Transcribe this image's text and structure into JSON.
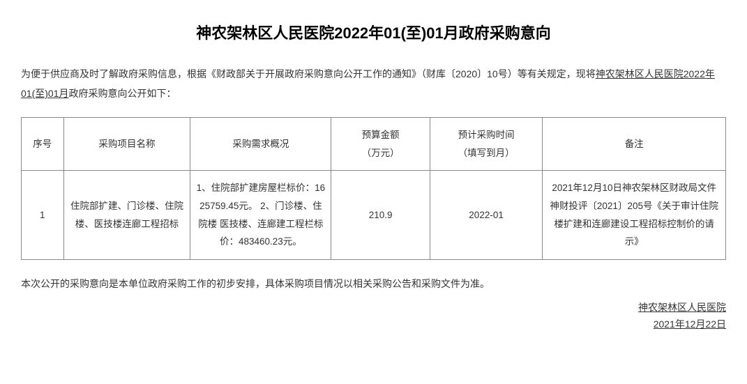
{
  "title": "神农架林区人民医院2022年01(至)01月政府采购意向",
  "intro_part1": "为便于供应商及时了解政府采购信息，根据《财政部关于开展政府采购意向公开工作的通知》（财库〔2020〕10号）等有关规定，现将",
  "intro_org_period": "神农架林区人民医院2022年01(至)01月",
  "intro_part2": "政府采购意向公开如下：",
  "table": {
    "headers": {
      "seq": "序号",
      "name": "采购项目名称",
      "req": "采购需求概况",
      "budget": "预算金额\n（万元）",
      "time": "预计采购时间\n（填写到月）",
      "note": "备注"
    },
    "rows": [
      {
        "seq": "1",
        "name": "住院部扩建、门诊楼、住院楼、医技楼连廊工程招标",
        "req": "1、住院部扩建房屋栏标价：1625759.45元。 2、门诊楼、住院楼 医技楼、连廊建工程栏标价：483460.23元。",
        "budget": "210.9",
        "time": "2022-01",
        "note": "2021年12月10日神农架林区财政局文件 神财投评〔2021〕205号《关于审计住院楼扩建和连廊建设工程招标控制价的请示》"
      }
    ]
  },
  "footnote": "本次公开的采购意向是本单位政府采购工作的初步安排，具体采购项目情况以相关采购公告和采购文件为准。",
  "sign_org": "神农架林区人民医院",
  "sign_date": "2021年12月22日"
}
